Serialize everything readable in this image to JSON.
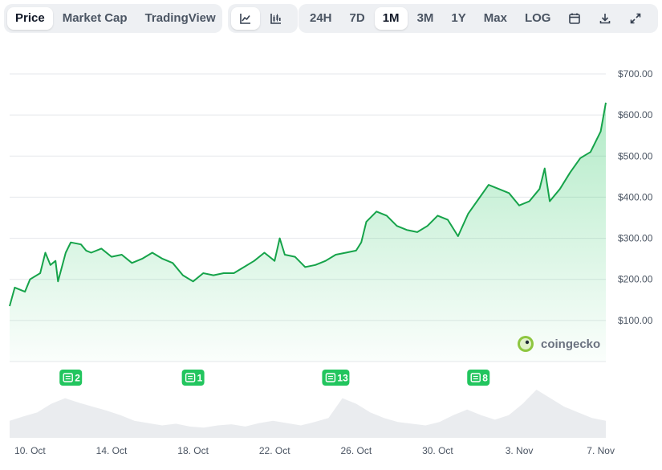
{
  "toolbar": {
    "type_tabs": [
      "Price",
      "Market Cap",
      "TradingView"
    ],
    "active_type": "Price",
    "style_icons": [
      "line-chart-icon",
      "candlestick-chart-icon"
    ],
    "range_tabs": [
      "24H",
      "7D",
      "1M",
      "3M",
      "1Y",
      "Max",
      "LOG"
    ],
    "active_range": "1M",
    "tool_icons": [
      "calendar-icon",
      "download-icon",
      "fullscreen-icon"
    ]
  },
  "watermark": "coingecko",
  "colors": {
    "line": "#16a34a",
    "fill": "#22c55e",
    "badge": "#22c55e",
    "volume": "#e5e7eb"
  },
  "chart_data": {
    "type": "area",
    "y_tick_labels": [
      "$100.00",
      "$200.00",
      "$300.00",
      "$400.00",
      "$500.00",
      "$600.00",
      "$700.00"
    ],
    "y_ticks": [
      100,
      200,
      300,
      400,
      500,
      600,
      700
    ],
    "ylim": [
      0,
      700
    ],
    "x_tick_labels": [
      "10. Oct",
      "14. Oct",
      "18. Oct",
      "22. Oct",
      "26. Oct",
      "30. Oct",
      "3. Nov",
      "7. Nov"
    ],
    "x_ticks": [
      "2024-10-10",
      "2024-10-14",
      "2024-10-18",
      "2024-10-22",
      "2024-10-26",
      "2024-10-30",
      "2024-11-03",
      "2024-11-07"
    ],
    "xlim": [
      "2024-10-09",
      "2024-11-07"
    ],
    "grid": true,
    "series": [
      {
        "values": [
          [
            "2024-10-09",
            135
          ],
          [
            "2024-10-09T06:00",
            180
          ],
          [
            "2024-10-09T18:00",
            170
          ],
          [
            "2024-10-10",
            200
          ],
          [
            "2024-10-10T12:00",
            215
          ],
          [
            "2024-10-10T18:00",
            265
          ],
          [
            "2024-10-11",
            235
          ],
          [
            "2024-10-11T06:00",
            245
          ],
          [
            "2024-10-11T09:00",
            195
          ],
          [
            "2024-10-11T18:00",
            265
          ],
          [
            "2024-10-12",
            290
          ],
          [
            "2024-10-12T12:00",
            285
          ],
          [
            "2024-10-12T18:00",
            270
          ],
          [
            "2024-10-13",
            265
          ],
          [
            "2024-10-13T12:00",
            275
          ],
          [
            "2024-10-14",
            255
          ],
          [
            "2024-10-14T12:00",
            260
          ],
          [
            "2024-10-15",
            240
          ],
          [
            "2024-10-15T12:00",
            250
          ],
          [
            "2024-10-16",
            265
          ],
          [
            "2024-10-16T12:00",
            250
          ],
          [
            "2024-10-17",
            240
          ],
          [
            "2024-10-17T12:00",
            210
          ],
          [
            "2024-10-18",
            195
          ],
          [
            "2024-10-18T12:00",
            215
          ],
          [
            "2024-10-19",
            210
          ],
          [
            "2024-10-19T12:00",
            215
          ],
          [
            "2024-10-20",
            215
          ],
          [
            "2024-10-20T12:00",
            230
          ],
          [
            "2024-10-21",
            245
          ],
          [
            "2024-10-21T12:00",
            265
          ],
          [
            "2024-10-22",
            245
          ],
          [
            "2024-10-22T06:00",
            300
          ],
          [
            "2024-10-22T12:00",
            260
          ],
          [
            "2024-10-23",
            255
          ],
          [
            "2024-10-23T12:00",
            230
          ],
          [
            "2024-10-24",
            235
          ],
          [
            "2024-10-24T12:00",
            245
          ],
          [
            "2024-10-25",
            260
          ],
          [
            "2024-10-25T12:00",
            265
          ],
          [
            "2024-10-26",
            270
          ],
          [
            "2024-10-26T06:00",
            290
          ],
          [
            "2024-10-26T12:00",
            340
          ],
          [
            "2024-10-27",
            365
          ],
          [
            "2024-10-27T12:00",
            355
          ],
          [
            "2024-10-28",
            330
          ],
          [
            "2024-10-28T12:00",
            320
          ],
          [
            "2024-10-29",
            315
          ],
          [
            "2024-10-29T12:00",
            330
          ],
          [
            "2024-10-30",
            355
          ],
          [
            "2024-10-30T12:00",
            345
          ],
          [
            "2024-10-31",
            305
          ],
          [
            "2024-10-31T12:00",
            360
          ],
          [
            "2024-11-01",
            395
          ],
          [
            "2024-11-01T12:00",
            430
          ],
          [
            "2024-11-02",
            420
          ],
          [
            "2024-11-02T12:00",
            410
          ],
          [
            "2024-11-03",
            380
          ],
          [
            "2024-11-03T12:00",
            390
          ],
          [
            "2024-11-04",
            420
          ],
          [
            "2024-11-04T06:00",
            470
          ],
          [
            "2024-11-04T12:00",
            390
          ],
          [
            "2024-11-05",
            420
          ],
          [
            "2024-11-05T12:00",
            460
          ],
          [
            "2024-11-06",
            495
          ],
          [
            "2024-11-06T12:00",
            510
          ],
          [
            "2024-11-07",
            560
          ],
          [
            "2024-11-07T06:00",
            630
          ]
        ]
      }
    ],
    "news_badges": [
      {
        "date": "2024-10-12",
        "count": "2"
      },
      {
        "date": "2024-10-18",
        "count": "1"
      },
      {
        "date": "2024-10-25",
        "count": "13"
      },
      {
        "date": "2024-11-01",
        "count": "8"
      }
    ],
    "volume": [
      30,
      38,
      45,
      60,
      70,
      62,
      55,
      48,
      40,
      30,
      26,
      22,
      25,
      20,
      18,
      22,
      24,
      20,
      26,
      30,
      26,
      22,
      28,
      35,
      70,
      60,
      45,
      35,
      28,
      25,
      22,
      28,
      40,
      50,
      40,
      32,
      40,
      60,
      85,
      70,
      55,
      45,
      35,
      30
    ]
  }
}
